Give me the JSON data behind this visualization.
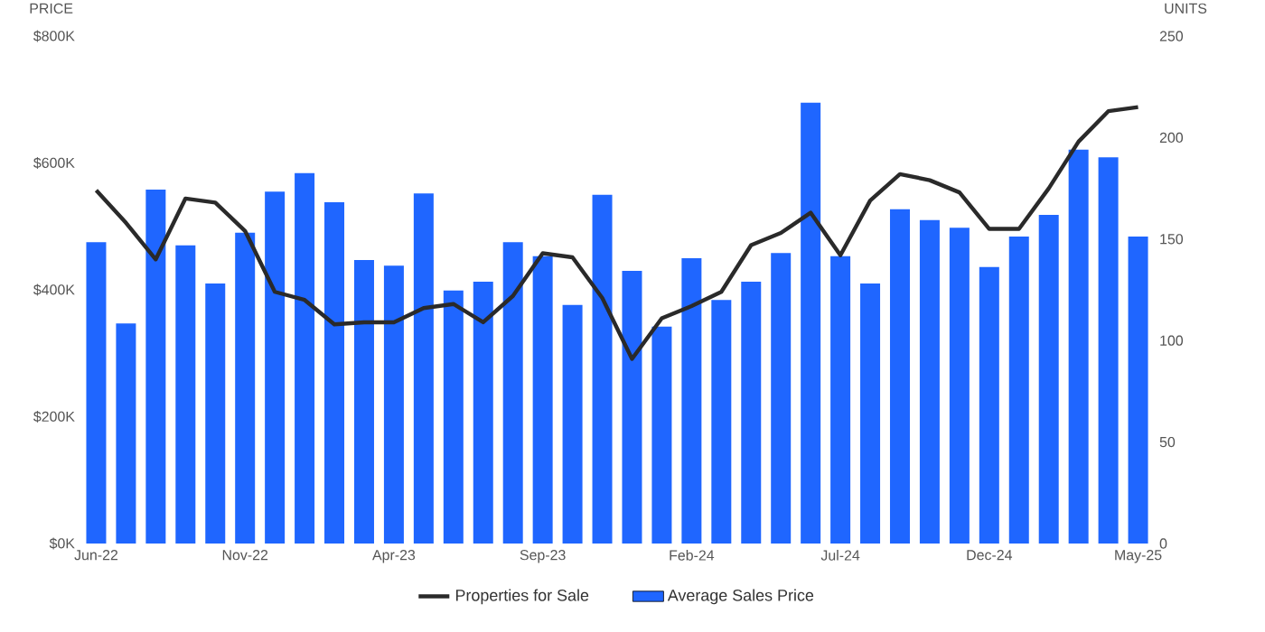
{
  "chart_data": {
    "type": "bar",
    "ylabel": "PRICE",
    "y2label": "UNITS",
    "categories": [
      "Jun-22",
      null,
      null,
      null,
      null,
      "Nov-22",
      null,
      null,
      null,
      null,
      "Apr-23",
      null,
      null,
      null,
      null,
      "Sep-23",
      null,
      null,
      null,
      null,
      "Feb-24",
      null,
      null,
      null,
      null,
      "Jul-24",
      null,
      null,
      null,
      null,
      "Dec-24",
      null,
      null,
      null,
      null,
      "May-25"
    ],
    "series": [
      {
        "name": "Properties for Sale",
        "type": "line",
        "axis": "y2",
        "color": "#2a2a2a",
        "values": [
          174,
          158,
          140,
          170,
          168,
          154,
          124,
          120,
          108,
          109,
          109,
          116,
          118,
          109,
          122,
          143,
          141,
          121,
          91,
          111,
          117,
          124,
          147,
          153,
          163,
          142,
          169,
          182,
          179,
          173,
          155,
          155,
          175,
          198,
          213,
          215
        ]
      },
      {
        "name": "Average Sales Price",
        "color": "#1f66ff",
        "values": [
          475000,
          347000,
          558000,
          470000,
          410000,
          490000,
          555000,
          584000,
          538000,
          447000,
          438000,
          552000,
          399000,
          413000,
          475000,
          453000,
          376000,
          550000,
          430000,
          342000,
          450000,
          384000,
          413000,
          458000,
          695000,
          453000,
          410000,
          527000,
          510000,
          498000,
          436000,
          484000,
          518000,
          621000,
          609000,
          484000
        ]
      }
    ],
    "ylim": [
      0,
      800000
    ],
    "yticks": [
      {
        "value": 0,
        "label": "$0K"
      },
      {
        "value": 200000,
        "label": "$200K"
      },
      {
        "value": 400000,
        "label": "$400K"
      },
      {
        "value": 600000,
        "label": "$600K"
      },
      {
        "value": 800000,
        "label": "$800K"
      }
    ],
    "y2lim": [
      0,
      250
    ],
    "y2ticks": [
      0,
      50,
      100,
      150,
      200,
      250
    ],
    "legend": "bottom"
  }
}
